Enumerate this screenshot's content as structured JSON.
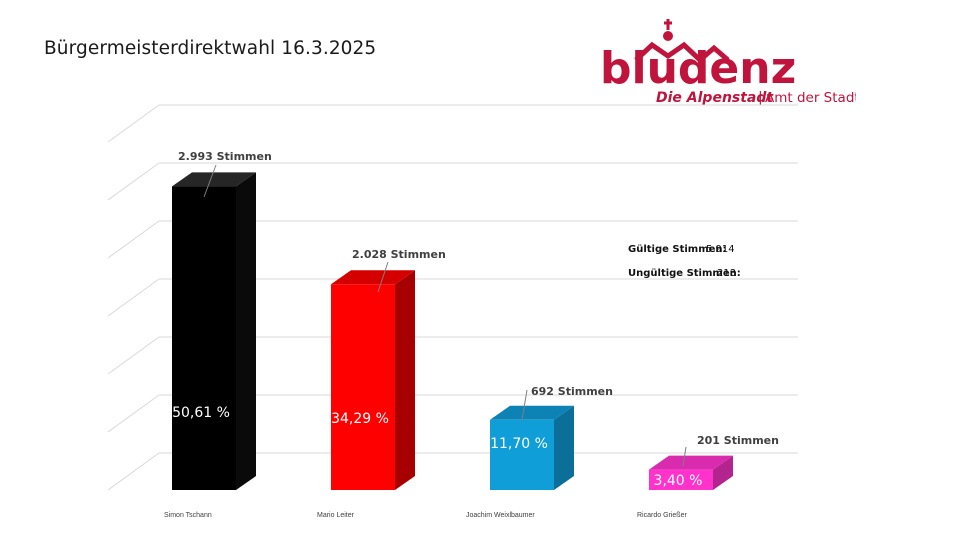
{
  "page": {
    "title": "Bürgermeisterdirektwahl 16.3.2025"
  },
  "logo": {
    "name": "bludenz",
    "tagline_main": "Die Alpenstadt",
    "tagline_sep": "|",
    "tagline_sub": "Amt der Stadt"
  },
  "colors": {
    "brand": "#c0143c",
    "grid": "#d9d9d9",
    "label": "#404040"
  },
  "stats": {
    "valid_label": "Gültige Stimmen:",
    "valid_value": "5.914",
    "invalid_label": "Ungültige Stimmen:",
    "invalid_value": "213"
  },
  "chart_data": {
    "type": "bar",
    "title": "",
    "xlabel": "",
    "ylabel": "",
    "grid": true,
    "legend": "none",
    "three_d": true,
    "categories": [
      "Simon Tschann",
      "Mario Leiter",
      "Joachim Weixlbaumer",
      "Ricardo Grießer"
    ],
    "values": [
      50.61,
      34.29,
      11.7,
      3.4
    ],
    "value_labels": [
      "50,61 %",
      "34,29 %",
      "11,70 %",
      "3,40 %"
    ],
    "votes_labels": [
      "2.993 Stimmen",
      "2.028 Stimmen",
      "692 Stimmen",
      "201 Stimmen"
    ],
    "ylim": [
      0,
      60
    ],
    "bar_colors": [
      {
        "front": "#000000",
        "side": "#0a0a0a",
        "top": "#262626"
      },
      {
        "front": "#ff0000",
        "side": "#a60000",
        "top": "#d40000"
      },
      {
        "front": "#0f9ed8",
        "side": "#0b6f99",
        "top": "#0c82b5"
      },
      {
        "front": "#ff33cc",
        "side": "#b3248f",
        "top": "#d92bad"
      }
    ]
  }
}
